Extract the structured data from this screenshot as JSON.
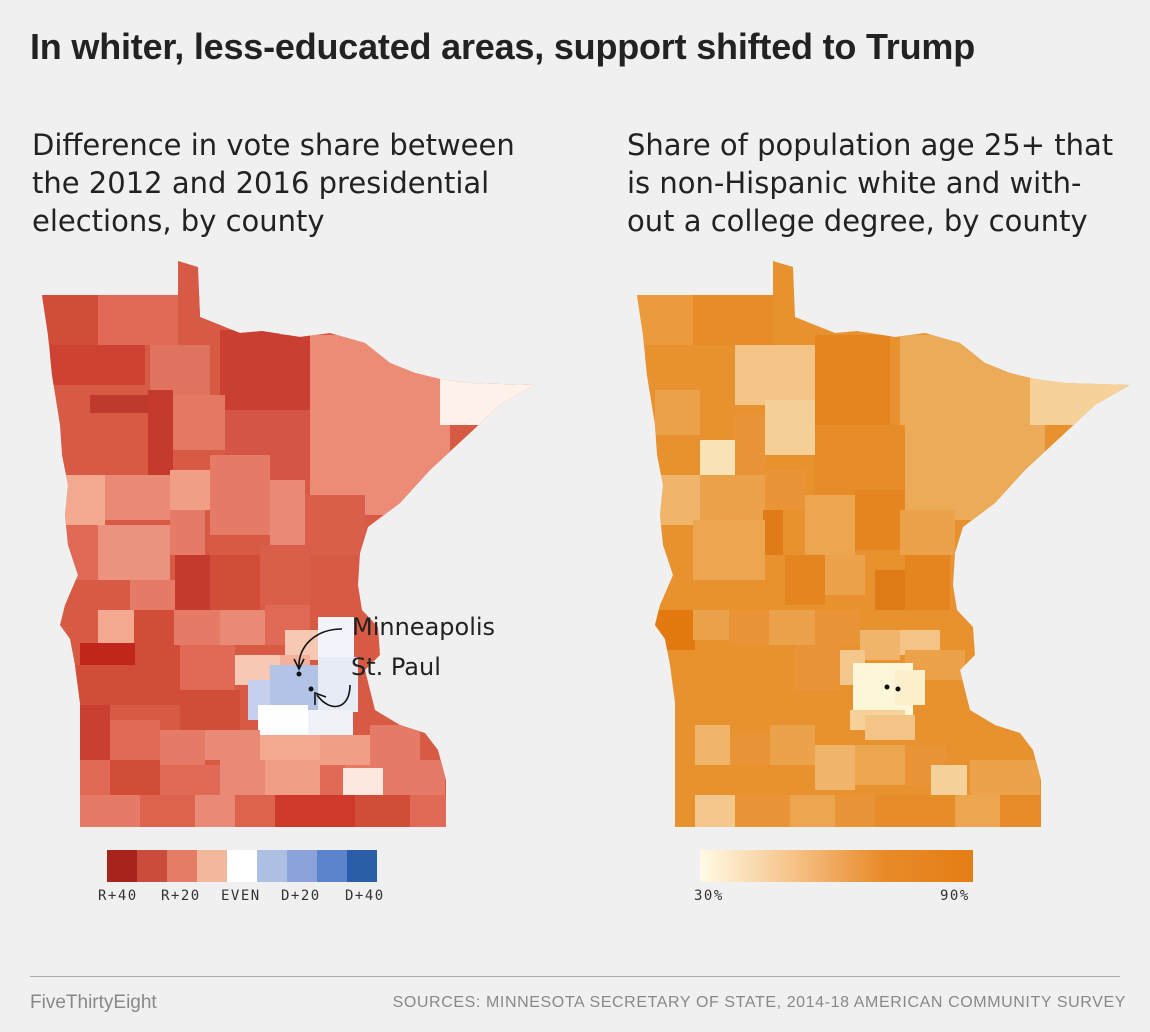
{
  "title": "In whiter, less-educated areas, support shifted to Trump",
  "left_panel": {
    "subtitle_lines": [
      "Difference in vote share between",
      "the 2012 and 2016 presidential",
      "elections, by county"
    ],
    "legend": {
      "colors": [
        "#a8231b",
        "#c94d3a",
        "#e47c66",
        "#f3b79b",
        "#ffffff",
        "#adbfe3",
        "#8aa3d9",
        "#5c84cc",
        "#2a5ea8"
      ],
      "labels": [
        "R+40",
        "R+20",
        "EVEN",
        "D+20",
        "D+40"
      ]
    },
    "annotations": {
      "minneapolis": "Minneapolis",
      "st_paul": "St. Paul"
    }
  },
  "right_panel": {
    "subtitle_lines": [
      "Share of population age 25+ that",
      "is non-Hispanic white and with-",
      "out a college degree, by county"
    ],
    "legend": {
      "min_label": "30%",
      "max_label": "90%"
    }
  },
  "footer": {
    "brand": "FiveThirtyEight",
    "sources": "SOURCES: MINNESOTA SECRETARY OF STATE, 2014-18 AMERICAN COMMUNITY SURVEY"
  }
}
